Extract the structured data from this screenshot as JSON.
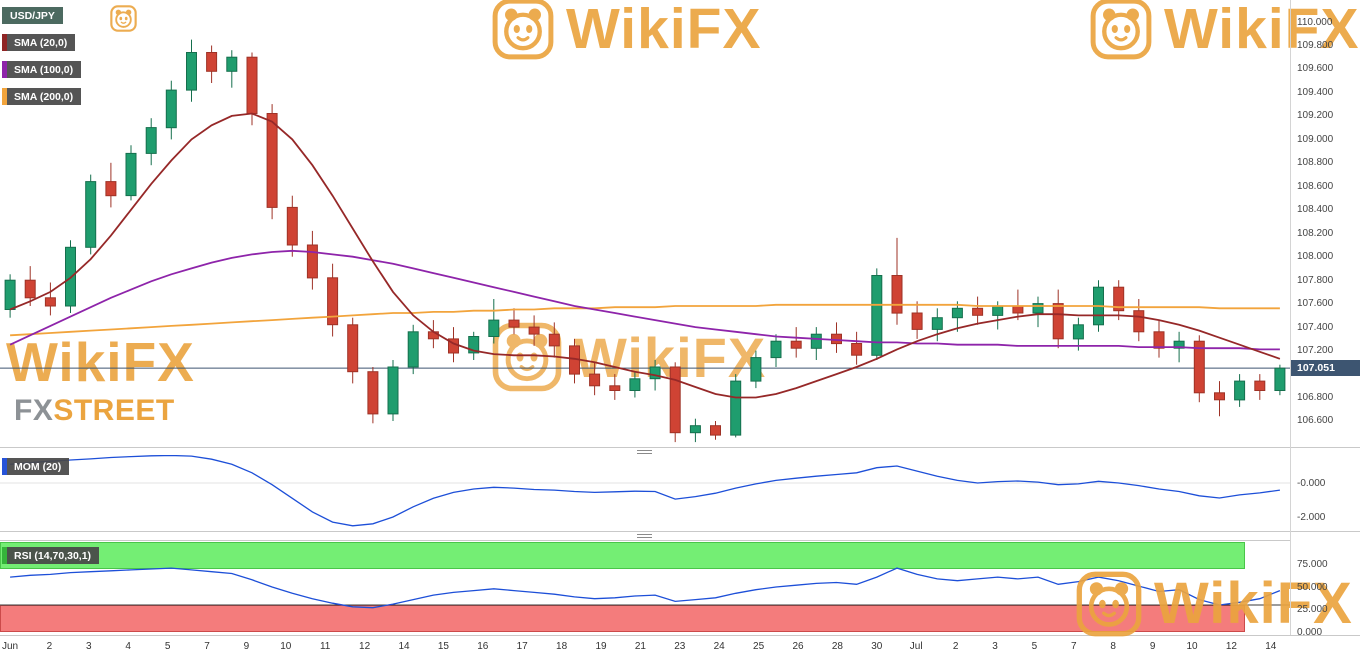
{
  "legend": {
    "symbol": "USD/JPY",
    "sma20": "SMA (20,0)",
    "sma100": "SMA (100,0)",
    "sma200": "SMA (200,0)"
  },
  "mom": {
    "label": "MOM (20)",
    "axis": [
      "-0.000",
      "-2.000"
    ]
  },
  "rsi": {
    "label": "RSI (14,70,30,1)",
    "axis": [
      "75.000",
      "50.000",
      "25.000",
      "0.000"
    ]
  },
  "price_axis": {
    "ticks": [
      "110.000",
      "109.800",
      "109.600",
      "109.400",
      "109.200",
      "109.000",
      "108.800",
      "108.600",
      "108.400",
      "108.200",
      "108.000",
      "107.800",
      "107.600",
      "107.400",
      "107.200",
      "106.800",
      "106.600"
    ],
    "current": "107.051"
  },
  "x_axis": {
    "labels": [
      "Jun",
      "2",
      "3",
      "4",
      "5",
      "7",
      "9",
      "10",
      "11",
      "12",
      "14",
      "15",
      "16",
      "17",
      "18",
      "19",
      "21",
      "23",
      "24",
      "25",
      "26",
      "28",
      "30",
      "Jul",
      "2",
      "3",
      "5",
      "7",
      "8",
      "9",
      "10",
      "12",
      "14"
    ]
  },
  "watermark": {
    "text": "WikiFX"
  },
  "fxstreet": {
    "fx": "FX",
    "street": "STREET"
  },
  "colors": {
    "bull": "#1f9d6e",
    "bear": "#cf4334",
    "sma20": "#962828",
    "sma100": "#8e24aa",
    "sma200": "#f2a43c",
    "indicator_line": "#1d4fd8",
    "rsi_upper_band": "#74ee74",
    "rsi_lower_band": "#f47c7c",
    "current_price_bg": "#3d5571",
    "watermark_gold": "#eba43f"
  },
  "chart_data": {
    "type": "candlestick",
    "symbol": "USD/JPY",
    "title": "USD/JPY with SMA(20), SMA(100), SMA(200), MOM(20) and RSI(14,70,30,1)",
    "price_axis_range": [
      106.42,
      110.0
    ],
    "price_ticks_step": 0.2,
    "current_price": 107.051,
    "x_labels": [
      "Jun",
      "2",
      "3",
      "4",
      "5",
      "7",
      "9",
      "10",
      "11",
      "12",
      "14",
      "15",
      "16",
      "17",
      "18",
      "19",
      "21",
      "23",
      "24",
      "25",
      "26",
      "28",
      "30",
      "Jul",
      "2",
      "3",
      "5",
      "7",
      "8",
      "9",
      "10",
      "12",
      "14"
    ],
    "candles_ohlc": [
      [
        107.55,
        107.85,
        107.48,
        107.8
      ],
      [
        107.8,
        107.92,
        107.58,
        107.65
      ],
      [
        107.65,
        107.78,
        107.5,
        107.58
      ],
      [
        107.58,
        108.14,
        107.52,
        108.08
      ],
      [
        108.08,
        108.7,
        108.02,
        108.64
      ],
      [
        108.64,
        108.8,
        108.42,
        108.52
      ],
      [
        108.52,
        108.95,
        108.48,
        108.88
      ],
      [
        108.88,
        109.18,
        108.78,
        109.1
      ],
      [
        109.1,
        109.5,
        109.0,
        109.42
      ],
      [
        109.42,
        109.85,
        109.32,
        109.74
      ],
      [
        109.74,
        109.8,
        109.48,
        109.58
      ],
      [
        109.58,
        109.76,
        109.44,
        109.7
      ],
      [
        109.7,
        109.74,
        109.12,
        109.22
      ],
      [
        109.22,
        109.3,
        108.32,
        108.42
      ],
      [
        108.42,
        108.52,
        108.0,
        108.1
      ],
      [
        108.1,
        108.22,
        107.72,
        107.82
      ],
      [
        107.82,
        107.94,
        107.32,
        107.42
      ],
      [
        107.42,
        107.48,
        106.92,
        107.02
      ],
      [
        107.02,
        107.06,
        106.58,
        106.66
      ],
      [
        106.66,
        107.12,
        106.6,
        107.06
      ],
      [
        107.06,
        107.42,
        107.0,
        107.36
      ],
      [
        107.36,
        107.46,
        107.22,
        107.3
      ],
      [
        107.3,
        107.4,
        107.1,
        107.18
      ],
      [
        107.18,
        107.36,
        107.12,
        107.32
      ],
      [
        107.32,
        107.64,
        107.26,
        107.46
      ],
      [
        107.46,
        107.56,
        107.34,
        107.4
      ],
      [
        107.4,
        107.5,
        107.24,
        107.34
      ],
      [
        107.34,
        107.44,
        107.14,
        107.24
      ],
      [
        107.24,
        107.3,
        106.92,
        107.0
      ],
      [
        107.0,
        107.1,
        106.82,
        106.9
      ],
      [
        106.9,
        107.0,
        106.78,
        106.86
      ],
      [
        106.86,
        107.02,
        106.8,
        106.96
      ],
      [
        106.96,
        107.12,
        106.86,
        107.06
      ],
      [
        107.06,
        107.1,
        106.42,
        106.5
      ],
      [
        106.5,
        106.62,
        106.42,
        106.56
      ],
      [
        106.56,
        106.6,
        106.44,
        106.48
      ],
      [
        106.48,
        107.0,
        106.46,
        106.94
      ],
      [
        106.94,
        107.2,
        106.88,
        107.14
      ],
      [
        107.14,
        107.34,
        107.06,
        107.28
      ],
      [
        107.28,
        107.4,
        107.14,
        107.22
      ],
      [
        107.22,
        107.4,
        107.12,
        107.34
      ],
      [
        107.34,
        107.44,
        107.18,
        107.26
      ],
      [
        107.26,
        107.36,
        107.08,
        107.16
      ],
      [
        107.16,
        107.9,
        107.12,
        107.84
      ],
      [
        107.84,
        108.16,
        107.42,
        107.52
      ],
      [
        107.52,
        107.62,
        107.3,
        107.38
      ],
      [
        107.38,
        107.56,
        107.28,
        107.48
      ],
      [
        107.48,
        107.62,
        107.36,
        107.56
      ],
      [
        107.56,
        107.66,
        107.42,
        107.5
      ],
      [
        107.5,
        107.62,
        107.38,
        107.58
      ],
      [
        107.58,
        107.72,
        107.46,
        107.52
      ],
      [
        107.52,
        107.66,
        107.4,
        107.6
      ],
      [
        107.6,
        107.72,
        107.22,
        107.3
      ],
      [
        107.3,
        107.48,
        107.2,
        107.42
      ],
      [
        107.42,
        107.8,
        107.36,
        107.74
      ],
      [
        107.74,
        107.8,
        107.46,
        107.54
      ],
      [
        107.54,
        107.64,
        107.28,
        107.36
      ],
      [
        107.36,
        107.46,
        107.14,
        107.22
      ],
      [
        107.22,
        107.36,
        107.1,
        107.28
      ],
      [
        107.28,
        107.33,
        106.76,
        106.84
      ],
      [
        106.84,
        106.94,
        106.64,
        106.78
      ],
      [
        106.78,
        107.0,
        106.72,
        106.94
      ],
      [
        106.94,
        107.0,
        106.78,
        106.86
      ],
      [
        106.86,
        107.08,
        106.82,
        107.05
      ]
    ],
    "sma20": [
      107.55,
      107.62,
      107.7,
      107.82,
      107.98,
      108.18,
      108.4,
      108.62,
      108.82,
      109.0,
      109.12,
      109.2,
      109.22,
      109.15,
      109.0,
      108.78,
      108.52,
      108.24,
      107.96,
      107.7,
      107.5,
      107.36,
      107.26,
      107.2,
      107.17,
      107.16,
      107.16,
      107.15,
      107.13,
      107.1,
      107.06,
      107.02,
      106.99,
      106.95,
      106.89,
      106.83,
      106.8,
      106.8,
      106.83,
      106.88,
      106.94,
      107.0,
      107.06,
      107.13,
      107.21,
      107.28,
      107.34,
      107.39,
      107.43,
      107.46,
      107.49,
      107.51,
      107.51,
      107.5,
      107.5,
      107.5,
      107.49,
      107.46,
      107.42,
      107.37,
      107.31,
      107.25,
      107.19,
      107.13
    ],
    "sma100": [
      107.25,
      107.33,
      107.41,
      107.49,
      107.57,
      107.65,
      107.72,
      107.79,
      107.85,
      107.9,
      107.95,
      107.99,
      108.02,
      108.04,
      108.05,
      108.04,
      108.02,
      108.0,
      107.97,
      107.94,
      107.9,
      107.86,
      107.82,
      107.78,
      107.74,
      107.7,
      107.66,
      107.62,
      107.58,
      107.55,
      107.52,
      107.49,
      107.46,
      107.43,
      107.4,
      107.38,
      107.36,
      107.34,
      107.32,
      107.31,
      107.3,
      107.29,
      107.28,
      107.27,
      107.27,
      107.26,
      107.26,
      107.25,
      107.25,
      107.25,
      107.24,
      107.24,
      107.24,
      107.24,
      107.24,
      107.24,
      107.23,
      107.23,
      107.23,
      107.22,
      107.22,
      107.22,
      107.21,
      107.21
    ],
    "sma200": [
      107.33,
      107.34,
      107.35,
      107.36,
      107.37,
      107.38,
      107.39,
      107.4,
      107.41,
      107.42,
      107.43,
      107.44,
      107.45,
      107.46,
      107.47,
      107.48,
      107.49,
      107.5,
      107.51,
      107.52,
      107.52,
      107.53,
      107.53,
      107.54,
      107.54,
      107.55,
      107.55,
      107.56,
      107.56,
      107.56,
      107.57,
      107.57,
      107.57,
      107.58,
      107.58,
      107.58,
      107.58,
      107.58,
      107.59,
      107.59,
      107.59,
      107.59,
      107.59,
      107.59,
      107.59,
      107.59,
      107.59,
      107.59,
      107.58,
      107.58,
      107.58,
      107.58,
      107.58,
      107.58,
      107.58,
      107.57,
      107.57,
      107.57,
      107.57,
      107.57,
      107.56,
      107.56,
      107.56,
      107.56
    ],
    "momentum": {
      "axis_labels": [
        "-0.000",
        "-2.000"
      ],
      "values": [
        1.1,
        1.2,
        1.28,
        1.35,
        1.42,
        1.5,
        1.55,
        1.6,
        1.62,
        1.58,
        1.4,
        1.1,
        0.6,
        -0.1,
        -0.9,
        -1.7,
        -2.3,
        -2.52,
        -2.4,
        -2.0,
        -1.4,
        -0.9,
        -0.55,
        -0.35,
        -0.25,
        -0.3,
        -0.38,
        -0.42,
        -0.5,
        -0.55,
        -0.52,
        -0.48,
        -0.5,
        -0.95,
        -0.8,
        -0.6,
        -0.3,
        -0.05,
        0.15,
        0.28,
        0.4,
        0.5,
        0.6,
        0.9,
        1.0,
        0.7,
        0.4,
        0.15,
        0.0,
        0.08,
        0.12,
        0.05,
        -0.1,
        -0.05,
        0.1,
        0.0,
        -0.15,
        -0.35,
        -0.5,
        -0.75,
        -0.88,
        -0.7,
        -0.58,
        -0.42
      ]
    },
    "rsi": {
      "axis_labels": [
        "75.000",
        "50.000",
        "25.000",
        "0.000"
      ],
      "upper_band": 70,
      "lower_band": 30,
      "range": [
        0,
        100
      ],
      "values": [
        61,
        63,
        64,
        66,
        67,
        68,
        69,
        70,
        71,
        69,
        67,
        65,
        58,
        50,
        43,
        37,
        32,
        28,
        27,
        31,
        36,
        41,
        44,
        46,
        48,
        46,
        44,
        42,
        39,
        37,
        38,
        40,
        41,
        34,
        36,
        38,
        43,
        47,
        50,
        52,
        54,
        55,
        53,
        61,
        71,
        64,
        59,
        57,
        59,
        61,
        59,
        61,
        53,
        56,
        61,
        57,
        51,
        45,
        47,
        36,
        30,
        33,
        37,
        46
      ]
    }
  }
}
